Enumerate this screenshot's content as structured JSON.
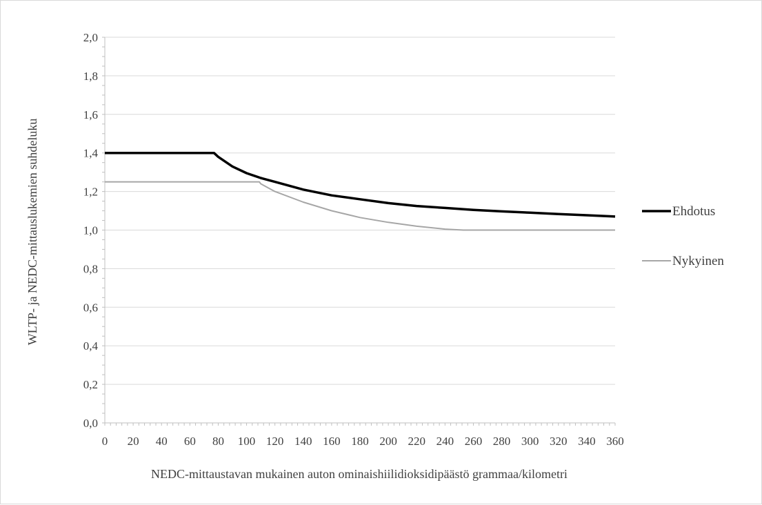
{
  "chart_data": {
    "type": "line",
    "xlabel": "NEDC-mittaustavan mukainen auton ominaishiilidioksidipäästö  grammaa/kilometri",
    "ylabel": "WLTP- ja NEDC-mittauslukemien suhdeluku",
    "xlim": [
      0,
      360
    ],
    "ylim": [
      0,
      2.0
    ],
    "x_ticks": [
      "0",
      "20",
      "40",
      "60",
      "80",
      "100",
      "120",
      "140",
      "160",
      "180",
      "200",
      "220",
      "240",
      "260",
      "280",
      "300",
      "320",
      "340",
      "360"
    ],
    "y_ticks": [
      "0,0",
      "0,2",
      "0,4",
      "0,6",
      "0,8",
      "1,0",
      "1,2",
      "1,4",
      "1,6",
      "1,8",
      "2,0"
    ],
    "grid": "horizontal",
    "legend_position": "right",
    "series": [
      {
        "name": "Ehdotus",
        "color": "#000000",
        "x": [
          0,
          77,
          80,
          90,
          100,
          110,
          120,
          140,
          160,
          180,
          200,
          220,
          240,
          260,
          280,
          300,
          320,
          340,
          360
        ],
        "y": [
          1.4,
          1.4,
          1.38,
          1.33,
          1.295,
          1.27,
          1.25,
          1.21,
          1.18,
          1.16,
          1.14,
          1.125,
          1.115,
          1.105,
          1.097,
          1.09,
          1.083,
          1.077,
          1.07
        ]
      },
      {
        "name": "Nykyinen",
        "color": "#a6a6a6",
        "x": [
          0,
          109,
          110,
          120,
          140,
          160,
          180,
          200,
          220,
          240,
          253,
          260,
          280,
          300,
          320,
          340,
          360
        ],
        "y": [
          1.25,
          1.25,
          1.24,
          1.2,
          1.145,
          1.1,
          1.065,
          1.04,
          1.02,
          1.005,
          1.0,
          1.0,
          1.0,
          1.0,
          1.0,
          1.0,
          1.0
        ]
      }
    ]
  }
}
